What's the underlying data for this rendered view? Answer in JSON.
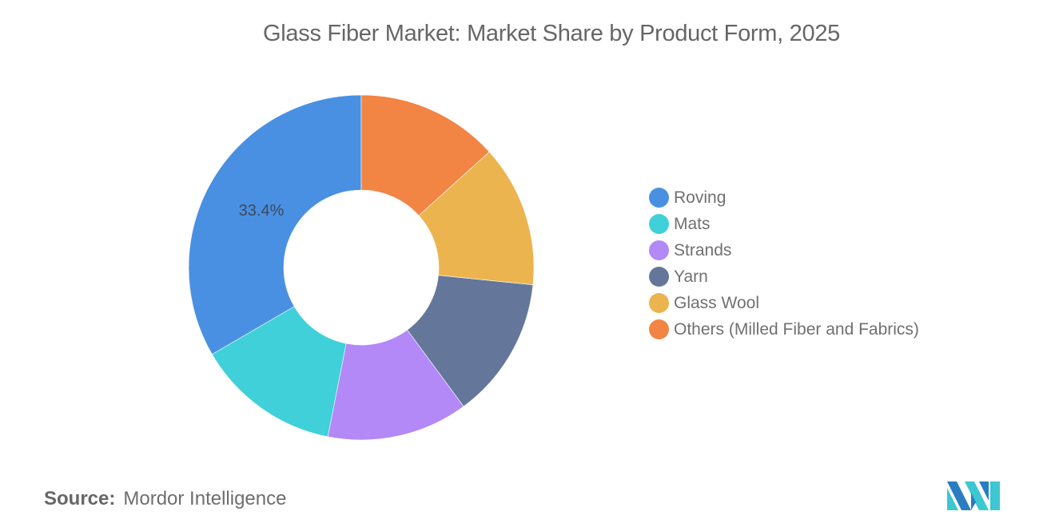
{
  "title": "Glass Fiber Market: Market Share by Product Form, 2025",
  "source": {
    "key": "Source:",
    "value": "Mordor Intelligence"
  },
  "logo": "mordor-intelligence-logo",
  "legend": [
    {
      "label": "Roving",
      "color": "#4a90e2"
    },
    {
      "label": "Mats",
      "color": "#3fd0d9"
    },
    {
      "label": "Strands",
      "color": "#b388f7"
    },
    {
      "label": "Yarn",
      "color": "#64779b"
    },
    {
      "label": "Glass Wool",
      "color": "#ebb44f"
    },
    {
      "label": "Others (Milled Fiber and Fabrics)",
      "color": "#f28444"
    }
  ],
  "chart_data": {
    "type": "pie",
    "subtype": "donut",
    "title": "Glass Fiber Market: Market Share by Product Form, 2025",
    "categories": [
      "Roving",
      "Mats",
      "Strands",
      "Yarn",
      "Glass Wool",
      "Others (Milled Fiber and Fabrics)"
    ],
    "values": [
      33.4,
      13.5,
      13.2,
      13.3,
      13.3,
      13.3
    ],
    "unit": "%",
    "colors": [
      "#4a90e2",
      "#3fd0d9",
      "#b388f7",
      "#64779b",
      "#ebb44f",
      "#f28444"
    ],
    "data_labels": [
      {
        "category": "Roving",
        "text": "33.4%"
      }
    ],
    "legend_position": "right",
    "start_angle_deg": 0,
    "direction": "counter-clockwise from top"
  }
}
